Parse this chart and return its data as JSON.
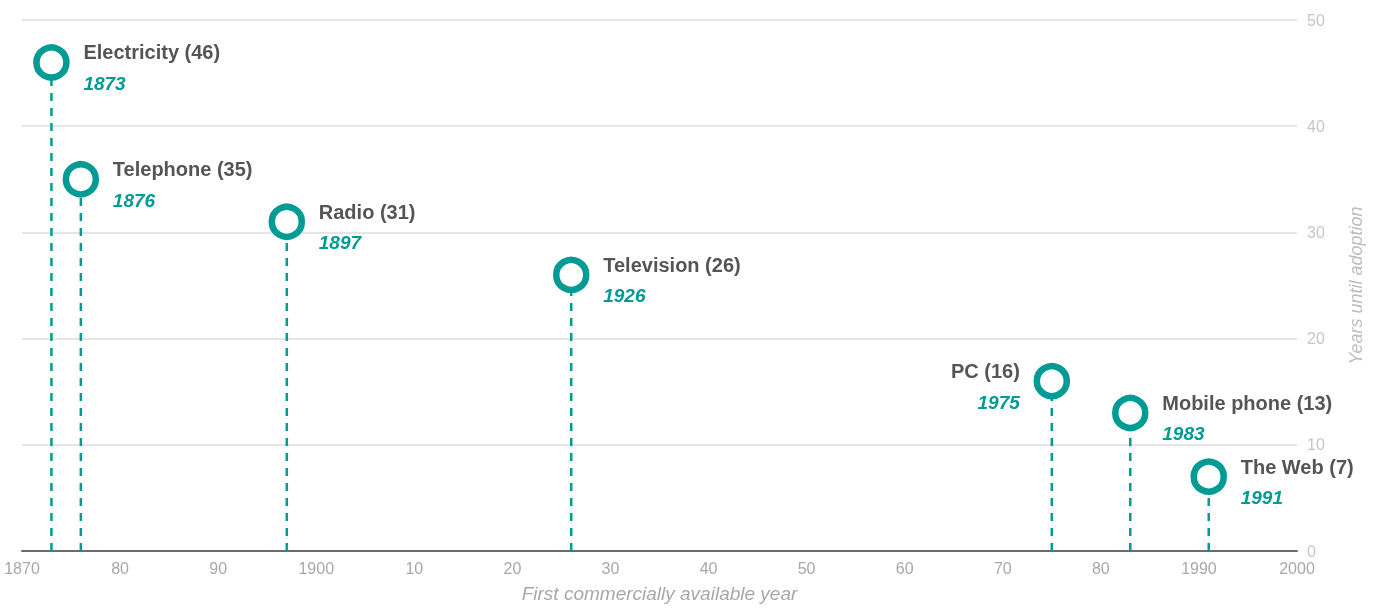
{
  "chart_data": {
    "type": "lollipop",
    "xlabel": "First commercially available year",
    "ylabel": "Years until adoption",
    "xlim": [
      1870,
      2000
    ],
    "xticks": [
      1870,
      {
        "value": 1880,
        "label": "80"
      },
      {
        "value": 1890,
        "label": "90"
      },
      1900,
      {
        "value": 1910,
        "label": "10"
      },
      {
        "value": 1920,
        "label": "20"
      },
      {
        "value": 1930,
        "label": "30"
      },
      {
        "value": 1940,
        "label": "40"
      },
      {
        "value": 1950,
        "label": "50"
      },
      {
        "value": 1960,
        "label": "60"
      },
      {
        "value": 1970,
        "label": "70"
      },
      {
        "value": 1980,
        "label": "80"
      },
      1990,
      2000
    ],
    "ylim": [
      0,
      50
    ],
    "yticks": [
      0,
      10,
      20,
      30,
      40,
      50
    ],
    "grid": "y",
    "marker": "circle",
    "line_style": "dashed",
    "series": [
      {
        "color": "#009b94",
        "x": [
          1873
        ],
        "values": [
          46
        ],
        "value_labels": [
          "Electricity (46)"
        ]
      },
      {
        "color": "#009b94",
        "x": [
          1876
        ],
        "values": [
          35
        ],
        "value_labels": [
          "Telephone (35)"
        ]
      },
      {
        "color": "#009b94",
        "x": [
          1897
        ],
        "values": [
          31
        ],
        "value_labels": [
          "Radio (31)"
        ]
      },
      {
        "color": "#009b94",
        "x": [
          1926
        ],
        "values": [
          26
        ],
        "value_labels": [
          "Television (26)"
        ]
      },
      {
        "color": "#009b94",
        "x": [
          1975
        ],
        "values": [
          16
        ],
        "value_labels": [
          "PC (16)"
        ]
      },
      {
        "color": "#009b94",
        "x": [
          1983
        ],
        "values": [
          13
        ],
        "value_labels": [
          "Mobile phone (13)"
        ]
      },
      {
        "color": "#009b94",
        "x": [
          1991
        ],
        "values": [
          7
        ],
        "value_labels": [
          "The Web (7)"
        ]
      }
    ],
    "annotations": [
      {
        "text": "1873",
        "x": 1873,
        "y": 46
      },
      {
        "text": "1876",
        "x": 1876,
        "y": 35
      },
      {
        "text": "1897",
        "x": 1897,
        "y": 31
      },
      {
        "text": "1926",
        "x": 1926,
        "y": 26
      },
      {
        "text": "1975",
        "x": 1975,
        "y": 16
      },
      {
        "text": "1983",
        "x": 1983,
        "y": 13
      },
      {
        "text": "1991",
        "x": 1991,
        "y": 7
      }
    ]
  }
}
